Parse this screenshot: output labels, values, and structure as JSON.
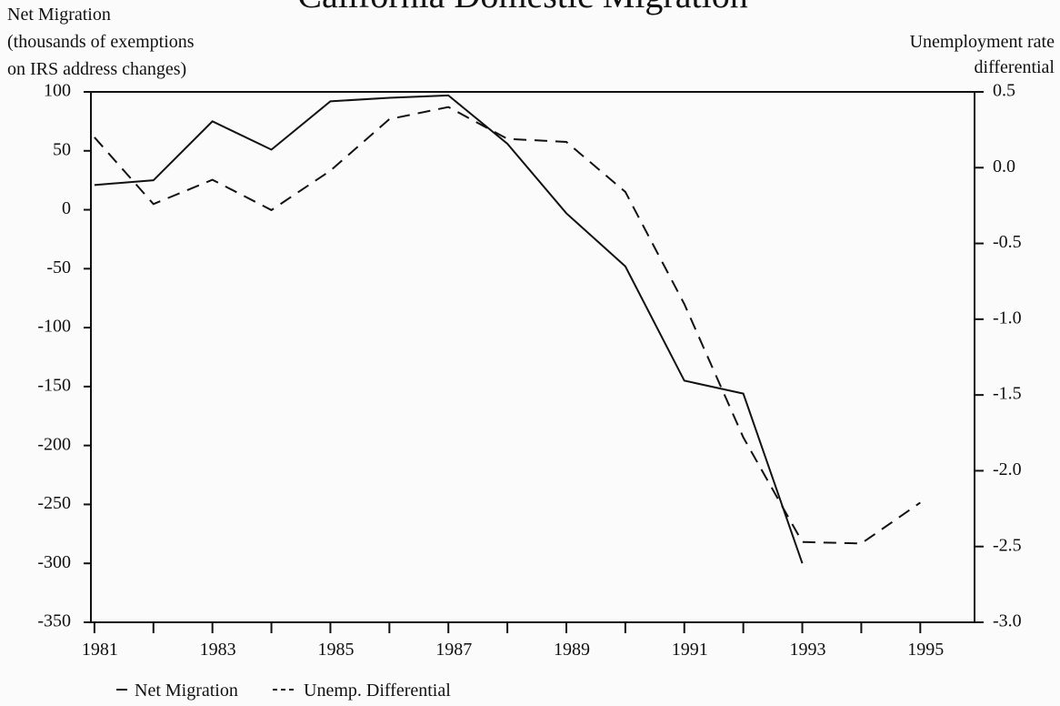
{
  "chart_data": {
    "type": "line",
    "title": "California Domestic Migration",
    "y_label": [
      "Net Migration",
      "(thousands of exemptions",
      "on IRS address changes)"
    ],
    "y2_label": [
      "Unemployment rate",
      "differential"
    ],
    "x": [
      1981,
      1982,
      1983,
      1984,
      1985,
      1986,
      1987,
      1988,
      1989,
      1990,
      1991,
      1992,
      1993,
      1994,
      1995
    ],
    "series": [
      {
        "name": "Net Migration",
        "color": "#111111",
        "dash": false,
        "values": [
          21,
          25,
          75,
          51,
          92,
          95,
          97,
          56,
          -3,
          -48,
          -145,
          -156,
          -300,
          null,
          null
        ]
      },
      {
        "name": "Unemp. Differential",
        "color": "#111111",
        "dash": true,
        "axis": "y2",
        "values": [
          0.2,
          -0.24,
          -0.08,
          -0.28,
          -0.02,
          0.32,
          0.4,
          0.19,
          0.17,
          -0.16,
          -0.9,
          -1.78,
          -2.47,
          -2.48,
          -2.21
        ]
      }
    ],
    "xlim": [
      1980.94,
      1995.92
    ],
    "xticks": [
      1981,
      1983,
      1985,
      1987,
      1989,
      1991,
      1993,
      1995
    ],
    "xticks_minor": [
      1982,
      1984,
      1986,
      1988,
      1990,
      1992,
      1994
    ],
    "ylim": [
      -350,
      100
    ],
    "yticks": [
      -350,
      -300,
      -250,
      -200,
      -150,
      -100,
      -50,
      0,
      50,
      100
    ],
    "y2lim": [
      -3.0,
      0.5
    ],
    "y2ticks": [
      {
        "value": -3.0,
        "label": "-3.0"
      },
      {
        "value": -2.5,
        "label": "-2.5"
      },
      {
        "value": -2.0,
        "label": "-2.0"
      },
      {
        "value": -1.5,
        "label": "-1.5"
      },
      {
        "value": -1.0,
        "label": "-1.0"
      },
      {
        "value": -0.5,
        "label": "-0.5"
      },
      {
        "value": 0.0,
        "label": "0.0"
      },
      {
        "value": 0.5,
        "label": "0.5"
      }
    ]
  }
}
